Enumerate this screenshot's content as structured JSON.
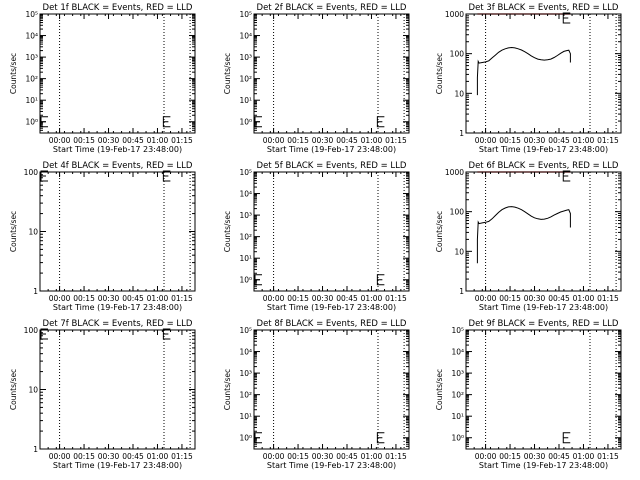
{
  "colors": {
    "background": "#ffffff",
    "axes": "#000000",
    "events": "#000000",
    "lld": "#ff0000",
    "markers": "#000000"
  },
  "chart_data": [
    {
      "type": "line",
      "title": "Det 1f BLACK = Events, RED = LLD",
      "ylabel": "Counts/sec",
      "xlabel": "Start Time (19-Feb-17 23:48:00)",
      "yscale": "log",
      "ylim": [
        0.3,
        100000
      ],
      "ytick_values": [
        1,
        10,
        100,
        1000,
        10000,
        100000
      ],
      "ytick_labels": [
        "10^0",
        "10^1",
        "10^2",
        "10^3",
        "10^4",
        "10^5"
      ],
      "xlim": [
        0,
        95
      ],
      "xtick_values": [
        12,
        27,
        42,
        57,
        72,
        87
      ],
      "xtick_labels": [
        "00:00",
        "00:15",
        "00:30",
        "00:45",
        "01:00",
        "01:15"
      ],
      "vlines": [
        12,
        76,
        92
      ],
      "series": [],
      "markers": [
        {
          "x": 0,
          "y": 1
        },
        {
          "x": 75,
          "y": 1
        }
      ]
    },
    {
      "type": "line",
      "title": "Det 2f BLACK = Events, RED = LLD",
      "ylabel": "Counts/sec",
      "xlabel": "Start Time (19-Feb-17 23:48:00)",
      "yscale": "log",
      "ylim": [
        0.3,
        100000
      ],
      "ytick_values": [
        1,
        10,
        100,
        1000,
        10000,
        100000
      ],
      "ytick_labels": [
        "10^0",
        "10^1",
        "10^2",
        "10^3",
        "10^4",
        "10^5"
      ],
      "xlim": [
        0,
        95
      ],
      "xtick_values": [
        12,
        27,
        42,
        57,
        72,
        87
      ],
      "xtick_labels": [
        "00:00",
        "00:15",
        "00:30",
        "00:45",
        "01:00",
        "01:15"
      ],
      "vlines": [
        12,
        76,
        92
      ],
      "series": [],
      "markers": [
        {
          "x": 0,
          "y": 1
        },
        {
          "x": 75,
          "y": 1
        }
      ]
    },
    {
      "type": "line",
      "title": "Det 3f BLACK = Events, RED = LLD",
      "ylabel": "Counts/sec",
      "xlabel": "Start Time (19-Feb-17 23:48:00)",
      "yscale": "log",
      "ylim": [
        1,
        1000
      ],
      "ytick_values": [
        1,
        10,
        100,
        1000
      ],
      "ytick_labels": [
        "1",
        "10",
        "100",
        "1000"
      ],
      "xlim": [
        0,
        95
      ],
      "xtick_values": [
        12,
        27,
        42,
        57,
        72,
        87
      ],
      "xtick_labels": [
        "00:00",
        "00:15",
        "00:30",
        "00:45",
        "01:00",
        "01:15"
      ],
      "vlines": [
        12,
        76,
        92
      ],
      "series": [
        {
          "color": "black",
          "points": [
            [
              7,
              9
            ],
            [
              7,
              25
            ],
            [
              7.5,
              64
            ],
            [
              8,
              58
            ],
            [
              10,
              60
            ],
            [
              12,
              62
            ],
            [
              14,
              66
            ],
            [
              16,
              78
            ],
            [
              18,
              92
            ],
            [
              20,
              108
            ],
            [
              22,
              122
            ],
            [
              24,
              133
            ],
            [
              26,
              140
            ],
            [
              28,
              143
            ],
            [
              30,
              140
            ],
            [
              32,
              133
            ],
            [
              34,
              124
            ],
            [
              36,
              112
            ],
            [
              38,
              100
            ],
            [
              40,
              88
            ],
            [
              42,
              79
            ],
            [
              44,
              73
            ],
            [
              46,
              70
            ],
            [
              48,
              69
            ],
            [
              50,
              70
            ],
            [
              52,
              73
            ],
            [
              54,
              80
            ],
            [
              56,
              90
            ],
            [
              58,
              102
            ],
            [
              60,
              114
            ],
            [
              62,
              120
            ],
            [
              63,
              122
            ],
            [
              64,
              100
            ],
            [
              64,
              60
            ]
          ]
        },
        {
          "color": "red",
          "points": [
            [
              7,
              1000
            ],
            [
              64,
              1000
            ]
          ]
        }
      ],
      "markers": [
        {
          "x": 59,
          "y": 1000
        }
      ]
    },
    {
      "type": "line",
      "title": "Det 4f BLACK = Events, RED = LLD",
      "ylabel": "Counts/sec",
      "xlabel": "Start Time (19-Feb-17 23:48:00)",
      "yscale": "log",
      "ylim": [
        1,
        100
      ],
      "ytick_values": [
        1,
        10,
        100
      ],
      "ytick_labels": [
        "1",
        "10",
        "100"
      ],
      "xlim": [
        0,
        95
      ],
      "xtick_values": [
        12,
        27,
        42,
        57,
        72,
        87
      ],
      "xtick_labels": [
        "00:00",
        "00:15",
        "00:30",
        "00:45",
        "01:00",
        "01:15"
      ],
      "vlines": [
        12,
        76,
        92
      ],
      "series": [],
      "markers": [
        {
          "x": 0,
          "y": 100
        },
        {
          "x": 75,
          "y": 100
        }
      ]
    },
    {
      "type": "line",
      "title": "Det 5f BLACK = Events, RED = LLD",
      "ylabel": "Counts/sec",
      "xlabel": "Start Time (19-Feb-17 23:48:00)",
      "yscale": "log",
      "ylim": [
        0.3,
        100000
      ],
      "ytick_values": [
        1,
        10,
        100,
        1000,
        10000,
        100000
      ],
      "ytick_labels": [
        "10^0",
        "10^1",
        "10^2",
        "10^3",
        "10^4",
        "10^5"
      ],
      "xlim": [
        0,
        95
      ],
      "xtick_values": [
        12,
        27,
        42,
        57,
        72,
        87
      ],
      "xtick_labels": [
        "00:00",
        "00:15",
        "00:30",
        "00:45",
        "01:00",
        "01:15"
      ],
      "vlines": [
        12,
        76,
        92
      ],
      "series": [],
      "markers": [
        {
          "x": 0,
          "y": 1
        },
        {
          "x": 75,
          "y": 1
        }
      ]
    },
    {
      "type": "line",
      "title": "Det 6f BLACK = Events, RED = LLD",
      "ylabel": "Counts/sec",
      "xlabel": "Start Time (19-Feb-17 23:48:00)",
      "yscale": "log",
      "ylim": [
        1,
        1000
      ],
      "ytick_values": [
        1,
        10,
        100,
        1000
      ],
      "ytick_labels": [
        "1",
        "10",
        "100",
        "1000"
      ],
      "xlim": [
        0,
        95
      ],
      "xtick_values": [
        12,
        27,
        42,
        57,
        72,
        87
      ],
      "xtick_labels": [
        "00:00",
        "00:15",
        "00:30",
        "00:45",
        "01:00",
        "01:15"
      ],
      "vlines": [
        12,
        76,
        92
      ],
      "series": [
        {
          "color": "black",
          "points": [
            [
              7,
              5
            ],
            [
              7,
              20
            ],
            [
              7.5,
              55
            ],
            [
              8,
              50
            ],
            [
              10,
              52
            ],
            [
              12,
              54
            ],
            [
              14,
              57
            ],
            [
              16,
              66
            ],
            [
              18,
              80
            ],
            [
              20,
              96
            ],
            [
              22,
              112
            ],
            [
              24,
              124
            ],
            [
              26,
              132
            ],
            [
              28,
              134
            ],
            [
              30,
              130
            ],
            [
              32,
              122
            ],
            [
              34,
              112
            ],
            [
              36,
              100
            ],
            [
              38,
              88
            ],
            [
              40,
              77
            ],
            [
              42,
              70
            ],
            [
              44,
              66
            ],
            [
              46,
              64
            ],
            [
              48,
              65
            ],
            [
              50,
              68
            ],
            [
              52,
              74
            ],
            [
              54,
              82
            ],
            [
              56,
              90
            ],
            [
              58,
              98
            ],
            [
              60,
              104
            ],
            [
              62,
              110
            ],
            [
              63,
              112
            ],
            [
              64,
              90
            ],
            [
              64,
              40
            ]
          ]
        },
        {
          "color": "red",
          "points": [
            [
              7,
              1000
            ],
            [
              64,
              1000
            ]
          ]
        }
      ],
      "markers": [
        {
          "x": 59,
          "y": 1000
        }
      ]
    },
    {
      "type": "line",
      "title": "Det 7f BLACK = Events, RED = LLD",
      "ylabel": "Counts/sec",
      "xlabel": "Start Time (19-Feb-17 23:48:00)",
      "yscale": "log",
      "ylim": [
        1,
        100
      ],
      "ytick_values": [
        1,
        10,
        100
      ],
      "ytick_labels": [
        "1",
        "10",
        "100"
      ],
      "xlim": [
        0,
        95
      ],
      "xtick_values": [
        12,
        27,
        42,
        57,
        72,
        87
      ],
      "xtick_labels": [
        "00:00",
        "00:15",
        "00:30",
        "00:45",
        "01:00",
        "01:15"
      ],
      "vlines": [
        12,
        76,
        92
      ],
      "series": [],
      "markers": [
        {
          "x": 0,
          "y": 100
        },
        {
          "x": 75,
          "y": 100
        }
      ]
    },
    {
      "type": "line",
      "title": "Det 8f BLACK = Events, RED = LLD",
      "ylabel": "Counts/sec",
      "xlabel": "Start Time (19-Feb-17 23:48:00)",
      "yscale": "log",
      "ylim": [
        0.3,
        100000
      ],
      "ytick_values": [
        1,
        10,
        100,
        1000,
        10000,
        100000
      ],
      "ytick_labels": [
        "10^0",
        "10^1",
        "10^2",
        "10^3",
        "10^4",
        "10^5"
      ],
      "xlim": [
        0,
        95
      ],
      "xtick_values": [
        12,
        27,
        42,
        57,
        72,
        87
      ],
      "xtick_labels": [
        "00:00",
        "00:15",
        "00:30",
        "00:45",
        "01:00",
        "01:15"
      ],
      "vlines": [
        12,
        76,
        92
      ],
      "series": [],
      "markers": [
        {
          "x": 0,
          "y": 1
        },
        {
          "x": 75,
          "y": 1
        }
      ]
    },
    {
      "type": "line",
      "title": "Det 9f BLACK = Events, RED = LLD",
      "ylabel": "Counts/sec",
      "xlabel": "Start Time (19-Feb-17 23:48:00)",
      "yscale": "log",
      "ylim": [
        0.3,
        100000
      ],
      "ytick_values": [
        1,
        10,
        100,
        1000,
        10000,
        100000
      ],
      "ytick_labels": [
        "10^0",
        "10^1",
        "10^2",
        "10^3",
        "10^4",
        "10^5"
      ],
      "xlim": [
        0,
        95
      ],
      "xtick_values": [
        12,
        27,
        42,
        57,
        72,
        87
      ],
      "xtick_labels": [
        "00:00",
        "00:15",
        "00:30",
        "00:45",
        "01:00",
        "01:15"
      ],
      "vlines": [
        12,
        76,
        92
      ],
      "series": [],
      "markers": [
        {
          "x": 59,
          "y": 1
        }
      ]
    }
  ]
}
